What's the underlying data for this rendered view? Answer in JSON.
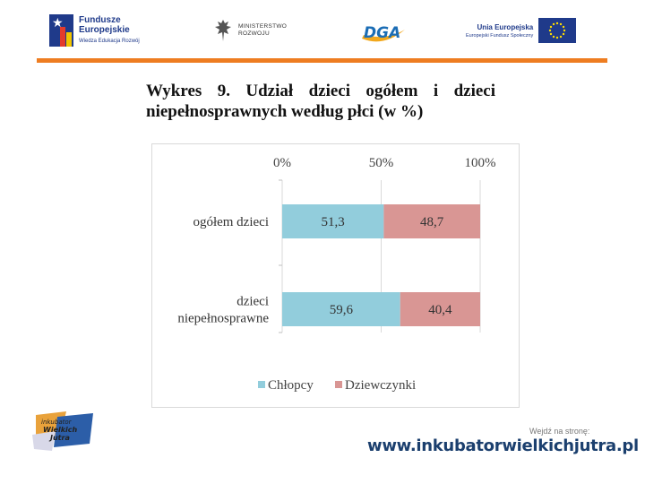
{
  "header": {
    "fe_logo": {
      "line1": "Fundusze",
      "line2": "Europejskie",
      "line3": "Wiedza Edukacja Rozwój"
    },
    "ministry_logo": {
      "line1": "MINISTERSTWO",
      "line2": "ROZWOJU"
    },
    "dga_logo": "DGA",
    "eu_logo": {
      "line1": "Unia Europejska",
      "line2": "Europejski Fundusz Społeczny"
    }
  },
  "colors": {
    "accent_rule": "#ee7d21",
    "series_boys": "#92cddc",
    "series_girls": "#d99694"
  },
  "chart_data": {
    "type": "bar",
    "orientation": "horizontal",
    "stacked": "percent",
    "title": "Wykres 9. Udział dzieci ogółem i dzieci niepełnosprawnych według płci (w %)",
    "x_ticks": [
      "0%",
      "50%",
      "100%"
    ],
    "xlim": [
      0,
      100
    ],
    "categories": [
      "ogółem dzieci",
      "dzieci niepełnosprawne"
    ],
    "series": [
      {
        "name": "Chłopcy",
        "values": [
          51.3,
          59.6
        ],
        "labels": [
          "51,3",
          "59,6"
        ]
      },
      {
        "name": "Dziewczynki",
        "values": [
          48.7,
          40.4
        ],
        "labels": [
          "48,7",
          "40,4"
        ]
      }
    ],
    "legend": "bottom",
    "grid": true,
    "x_axis_position": "top"
  },
  "footer": {
    "visit_label": "Wejdź na stronę:",
    "url": "www.inkubatorwielkichjutra.pl",
    "ikw_logo_text": "inkubator Wielkich Jutra"
  }
}
